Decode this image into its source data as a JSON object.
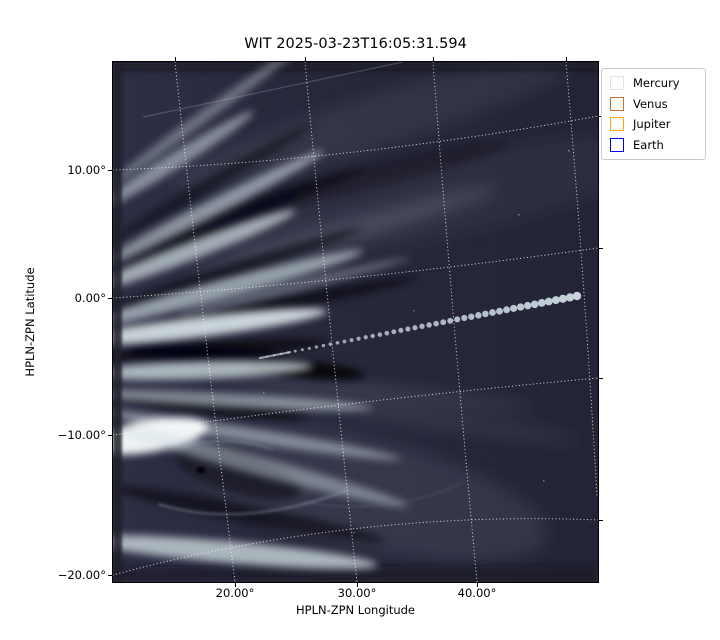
{
  "chart": {
    "title": "WIT 2025-03-23T16:05:31.594",
    "xlabel": "HPLN-ZPN Longitude",
    "ylabel": "HPLN-ZPN Latitude",
    "x_tick_labels": [
      "20.00°",
      "30.00°",
      "40.00°"
    ],
    "y_tick_labels": [
      "10.00°",
      "0.00°",
      "−10.00°",
      "−20.00°"
    ]
  },
  "legend": {
    "entries": [
      {
        "label": "Mercury",
        "color": "#e2e2e2"
      },
      {
        "label": "Venus",
        "color": "#c8702e"
      },
      {
        "label": "Jupiter",
        "color": "#ffa500"
      },
      {
        "label": "Earth",
        "color": "#0000f0"
      }
    ]
  },
  "chart_data": {
    "type": "heatmap",
    "title": "WIT 2025-03-23T16:05:31.594",
    "xlabel": "HPLN-ZPN Longitude",
    "ylabel": "HPLN-ZPN Latitude",
    "xlim": [
      10,
      50
    ],
    "ylim": [
      -20.5,
      18
    ],
    "x_ticks_deg": [
      20,
      30,
      40
    ],
    "y_ticks_deg": [
      10,
      0,
      -10,
      -20
    ],
    "grid": "white dotted curvilinear graticule (ZPN projection), longitude lines slant right going down, latitude lines rise toward the right",
    "image_description": "White-light heliospheric imager frame: bright pale-cyan solar-wind streamers fan out from the left (sunward) edge over a dark navy sky; strong bright/dark interleaved rays upper-left, a very bright knot with a swirling eddy and a small black spot near the lower left, faint wisps across the right half",
    "series": [
      {
        "name": "Mercury",
        "marker": "open-square-white",
        "visible_trail": {
          "type": "scatter",
          "points_count": 46,
          "start_deg": [
            22.0,
            -4.3
          ],
          "end_deg": [
            48.8,
            0.4
          ],
          "note": "trail of pale dots growing in size toward upper right"
        }
      },
      {
        "name": "Venus",
        "marker": "open-square-chocolate",
        "visible_trail": null
      },
      {
        "name": "Jupiter",
        "marker": "open-square-orange",
        "visible_trail": null
      },
      {
        "name": "Earth",
        "marker": "open-square-blue",
        "visible_trail": null
      }
    ]
  }
}
